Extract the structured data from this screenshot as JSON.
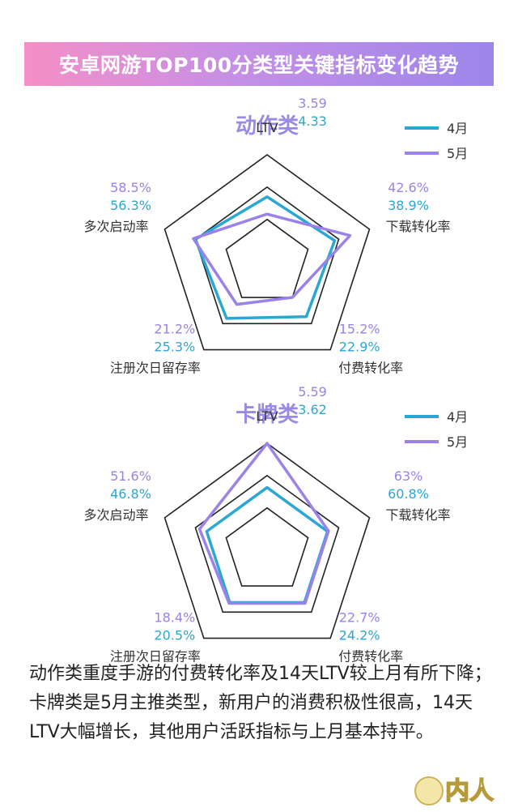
{
  "header": {
    "title": "安卓网游TOP100分类型关键指标变化趋势"
  },
  "legend": [
    {
      "label": "4月",
      "color": "#2aa7d4"
    },
    {
      "label": "5月",
      "color": "#9b82e8"
    }
  ],
  "chart_data": [
    {
      "type": "radar",
      "title": "动作类",
      "axes": [
        "LTV",
        "下载转化率",
        "付费转化率",
        "注册次日留存率",
        "多次启动率"
      ],
      "series": [
        {
          "name": "4月",
          "color": "#2aa7d4",
          "labels": [
            "4.33",
            "38.9%",
            "22.9%",
            "25.3%",
            "56.3%"
          ],
          "values": [
            0.61,
            0.66,
            0.62,
            0.64,
            0.7
          ]
        },
        {
          "name": "5月",
          "color": "#9b82e8",
          "labels": [
            "3.59",
            "42.6%",
            "15.2%",
            "21.2%",
            "58.5%"
          ],
          "values": [
            0.45,
            0.81,
            0.4,
            0.48,
            0.72
          ]
        }
      ]
    },
    {
      "type": "radar",
      "title": "卡牌类",
      "axes": [
        "LTV",
        "下载转化率",
        "付费转化率",
        "注册次日留存率",
        "多次启动率"
      ],
      "series": [
        {
          "name": "4月",
          "color": "#2aa7d4",
          "labels": [
            "3.62",
            "60.8%",
            "24.2%",
            "20.5%",
            "46.8%"
          ],
          "values": [
            0.59,
            0.59,
            0.59,
            0.59,
            0.59
          ]
        },
        {
          "name": "5月",
          "color": "#9b82e8",
          "labels": [
            "5.59",
            "63%",
            "22.7%",
            "18.4%",
            "51.6%"
          ],
          "values": [
            1.0,
            0.6,
            0.6,
            0.6,
            0.66
          ]
        }
      ]
    }
  ],
  "description": {
    "line1": "动作类重度手游的付费转化率及14天LTV较上月有所下降；",
    "line2": "卡牌类是5月主推类型，新用户的消费积极性很高，14天LTV大幅增长，其他用户活跃指标与上月基本持平。"
  },
  "logo": {
    "text": "内人",
    "icon": "watermark-logo"
  }
}
